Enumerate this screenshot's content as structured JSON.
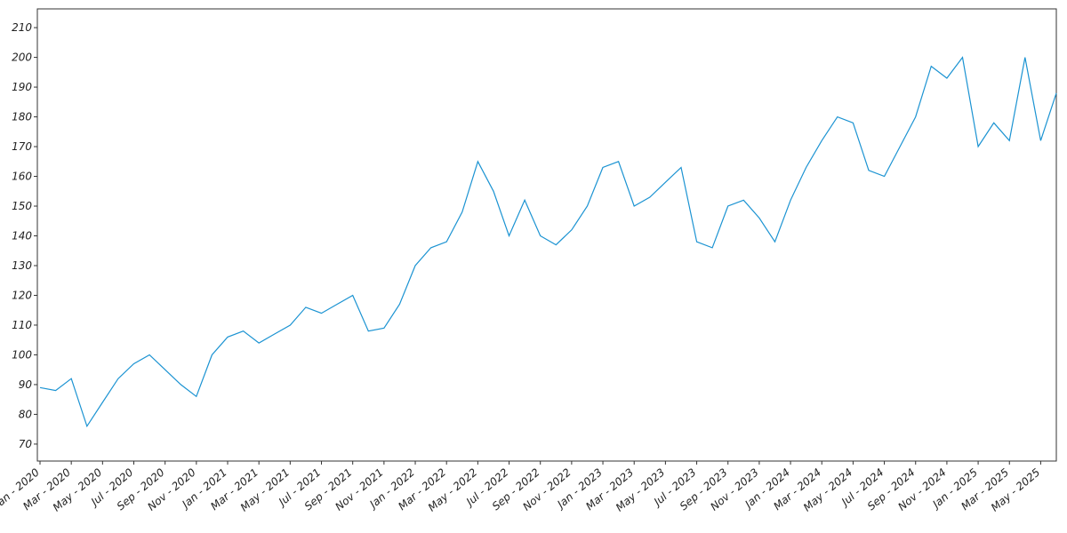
{
  "chart_data": {
    "type": "line",
    "x": [
      "2020-01",
      "2020-02",
      "2020-03",
      "2020-04",
      "2020-05",
      "2020-06",
      "2020-07",
      "2020-08",
      "2020-09",
      "2020-10",
      "2020-11",
      "2020-12",
      "2021-01",
      "2021-02",
      "2021-03",
      "2021-04",
      "2021-05",
      "2021-06",
      "2021-07",
      "2021-08",
      "2021-09",
      "2021-10",
      "2021-11",
      "2021-12",
      "2022-01",
      "2022-02",
      "2022-03",
      "2022-04",
      "2022-05",
      "2022-06",
      "2022-07",
      "2022-08",
      "2022-09",
      "2022-10",
      "2022-11",
      "2022-12",
      "2023-01",
      "2023-02",
      "2023-03",
      "2023-04",
      "2023-05",
      "2023-06",
      "2023-07",
      "2023-08",
      "2023-09",
      "2023-10",
      "2023-11",
      "2023-12",
      "2024-01",
      "2024-02",
      "2024-03",
      "2024-04",
      "2024-05",
      "2024-06",
      "2024-07",
      "2024-08",
      "2024-09",
      "2024-10",
      "2024-11",
      "2024-12",
      "2025-01",
      "2025-02",
      "2025-03",
      "2025-04",
      "2025-05",
      "2025-06"
    ],
    "series": [
      {
        "color": "#1b93d2",
        "values": [
          89,
          88,
          92,
          76,
          84,
          92,
          97,
          100,
          95,
          90,
          86,
          100,
          106,
          108,
          104,
          107,
          110,
          116,
          114,
          117,
          120,
          108,
          109,
          117,
          130,
          136,
          138,
          148,
          165,
          155,
          140,
          152,
          140,
          137,
          142,
          150,
          163,
          165,
          150,
          153,
          158,
          163,
          138,
          136,
          150,
          152,
          146,
          138,
          152,
          163,
          172,
          180,
          178,
          162,
          160,
          170,
          180,
          197,
          193,
          200,
          170,
          178,
          172,
          200,
          172,
          188
        ]
      }
    ],
    "ylim": [
      64.3,
      216.3
    ],
    "yticks": [
      70,
      80,
      90,
      100,
      110,
      120,
      130,
      140,
      150,
      160,
      170,
      180,
      190,
      200,
      210
    ],
    "xticks": [
      {
        "value": "2020-01",
        "label": "Jan - 2020"
      },
      {
        "value": "2020-03",
        "label": "Mar - 2020"
      },
      {
        "value": "2020-05",
        "label": "May - 2020"
      },
      {
        "value": "2020-07",
        "label": "Jul - 2020"
      },
      {
        "value": "2020-09",
        "label": "Sep - 2020"
      },
      {
        "value": "2020-11",
        "label": "Nov - 2020"
      },
      {
        "value": "2021-01",
        "label": "Jan - 2021"
      },
      {
        "value": "2021-03",
        "label": "Mar - 2021"
      },
      {
        "value": "2021-05",
        "label": "May - 2021"
      },
      {
        "value": "2021-07",
        "label": "Jul - 2021"
      },
      {
        "value": "2021-09",
        "label": "Sep - 2021"
      },
      {
        "value": "2021-11",
        "label": "Nov - 2021"
      },
      {
        "value": "2022-01",
        "label": "Jan - 2022"
      },
      {
        "value": "2022-03",
        "label": "Mar - 2022"
      },
      {
        "value": "2022-05",
        "label": "May - 2022"
      },
      {
        "value": "2022-07",
        "label": "Jul - 2022"
      },
      {
        "value": "2022-09",
        "label": "Sep - 2022"
      },
      {
        "value": "2022-11",
        "label": "Nov - 2022"
      },
      {
        "value": "2023-01",
        "label": "Jan - 2023"
      },
      {
        "value": "2023-03",
        "label": "Mar - 2023"
      },
      {
        "value": "2023-05",
        "label": "May - 2023"
      },
      {
        "value": "2023-07",
        "label": "Jul - 2023"
      },
      {
        "value": "2023-09",
        "label": "Sep - 2023"
      },
      {
        "value": "2023-11",
        "label": "Nov - 2023"
      },
      {
        "value": "2024-01",
        "label": "Jan - 2024"
      },
      {
        "value": "2024-03",
        "label": "Mar - 2024"
      },
      {
        "value": "2024-05",
        "label": "May - 2024"
      },
      {
        "value": "2024-07",
        "label": "Jul - 2024"
      },
      {
        "value": "2024-09",
        "label": "Sep - 2024"
      },
      {
        "value": "2024-11",
        "label": "Nov - 2024"
      },
      {
        "value": "2025-01",
        "label": "Jan - 2025"
      },
      {
        "value": "2025-03",
        "label": "Mar - 2025"
      },
      {
        "value": "2025-05",
        "label": "May - 2025"
      }
    ],
    "grid": false
  }
}
